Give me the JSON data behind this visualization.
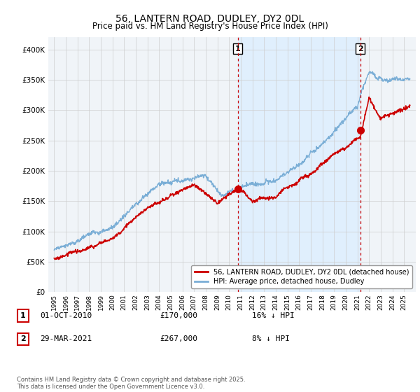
{
  "title": "56, LANTERN ROAD, DUDLEY, DY2 0DL",
  "subtitle": "Price paid vs. HM Land Registry's House Price Index (HPI)",
  "legend_label_red": "56, LANTERN ROAD, DUDLEY, DY2 0DL (detached house)",
  "legend_label_blue": "HPI: Average price, detached house, Dudley",
  "annotation1_date": "01-OCT-2010",
  "annotation1_price": "£170,000",
  "annotation1_hpi": "16% ↓ HPI",
  "annotation2_date": "29-MAR-2021",
  "annotation2_price": "£267,000",
  "annotation2_hpi": "8% ↓ HPI",
  "footer": "Contains HM Land Registry data © Crown copyright and database right 2025.\nThis data is licensed under the Open Government Licence v3.0.",
  "red_color": "#cc0000",
  "blue_color": "#7aaed6",
  "shade_color": "#ddeeff",
  "background_color": "#f0f4f8",
  "ylim": [
    0,
    420000
  ],
  "yticks": [
    0,
    50000,
    100000,
    150000,
    200000,
    250000,
    300000,
    350000,
    400000
  ],
  "marker1_year": 2010.75,
  "marker1_price": 170000,
  "marker2_year": 2021.25,
  "marker2_price": 267000
}
